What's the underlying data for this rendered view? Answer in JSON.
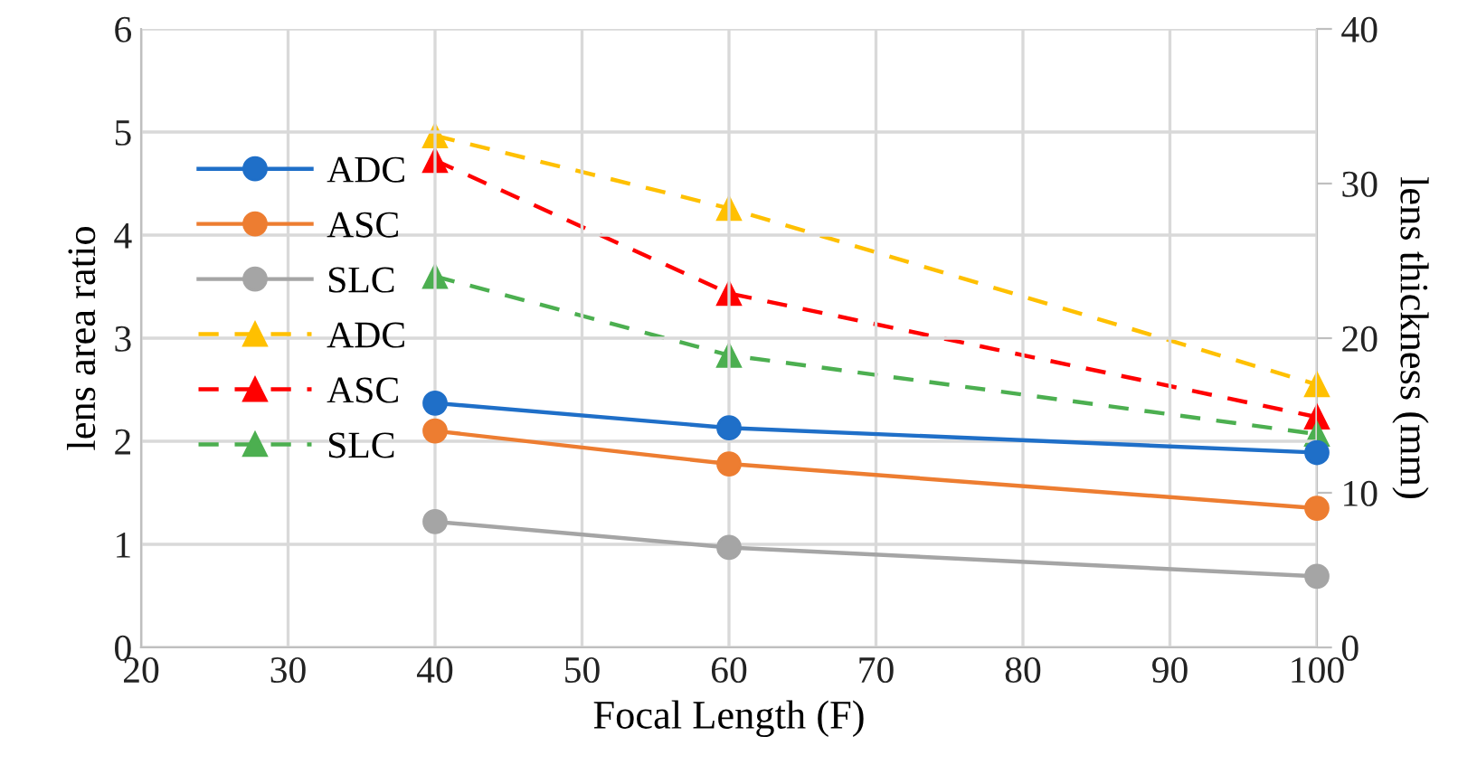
{
  "chart_data": {
    "type": "line",
    "xlabel": "Focal Length (F)",
    "ylabel": "lens area ratio",
    "y2label": "lens thickness (mm)",
    "xlim": [
      20,
      100
    ],
    "xticks": [
      20,
      30,
      40,
      50,
      60,
      70,
      80,
      90,
      100
    ],
    "ylim": [
      0,
      6
    ],
    "yticks": [
      0,
      1,
      2,
      3,
      4,
      5,
      6
    ],
    "y2lim": [
      0,
      40
    ],
    "y2ticks": [
      0,
      10,
      20,
      30,
      40
    ],
    "grid": true,
    "legend": "top left",
    "series": [
      {
        "name": "ADC",
        "color": "#1f6fc8",
        "x": [
          40,
          60,
          100
        ],
        "values": [
          2.37,
          2.13,
          1.89
        ],
        "marker": "circle",
        "line_style": "solid"
      },
      {
        "name": "ASC",
        "color": "#ed7d31",
        "x": [
          40,
          60,
          100
        ],
        "values": [
          2.1,
          1.78,
          1.35
        ],
        "marker": "circle",
        "line_style": "solid"
      },
      {
        "name": "SLC",
        "color": "#a5a5a5",
        "x": [
          40,
          60,
          100
        ],
        "values": [
          1.22,
          0.97,
          0.69
        ],
        "marker": "circle",
        "line_style": "solid"
      },
      {
        "name": "ADC",
        "color": "#ffc000",
        "x": [
          40,
          60,
          100
        ],
        "values": [
          33.1,
          28.4,
          17.0
        ],
        "marker": "triangle",
        "line_style": "dashed",
        "axis": "y2"
      },
      {
        "name": "ASC",
        "color": "#ff0000",
        "x": [
          40,
          60,
          100
        ],
        "values": [
          31.5,
          22.9,
          14.9
        ],
        "marker": "triangle",
        "line_style": "dashed",
        "axis": "y2"
      },
      {
        "name": "SLC",
        "color": "#4caf50",
        "x": [
          40,
          60,
          100
        ],
        "values": [
          24.0,
          18.9,
          13.8
        ],
        "marker": "triangle",
        "line_style": "dashed",
        "axis": "y2"
      }
    ]
  }
}
